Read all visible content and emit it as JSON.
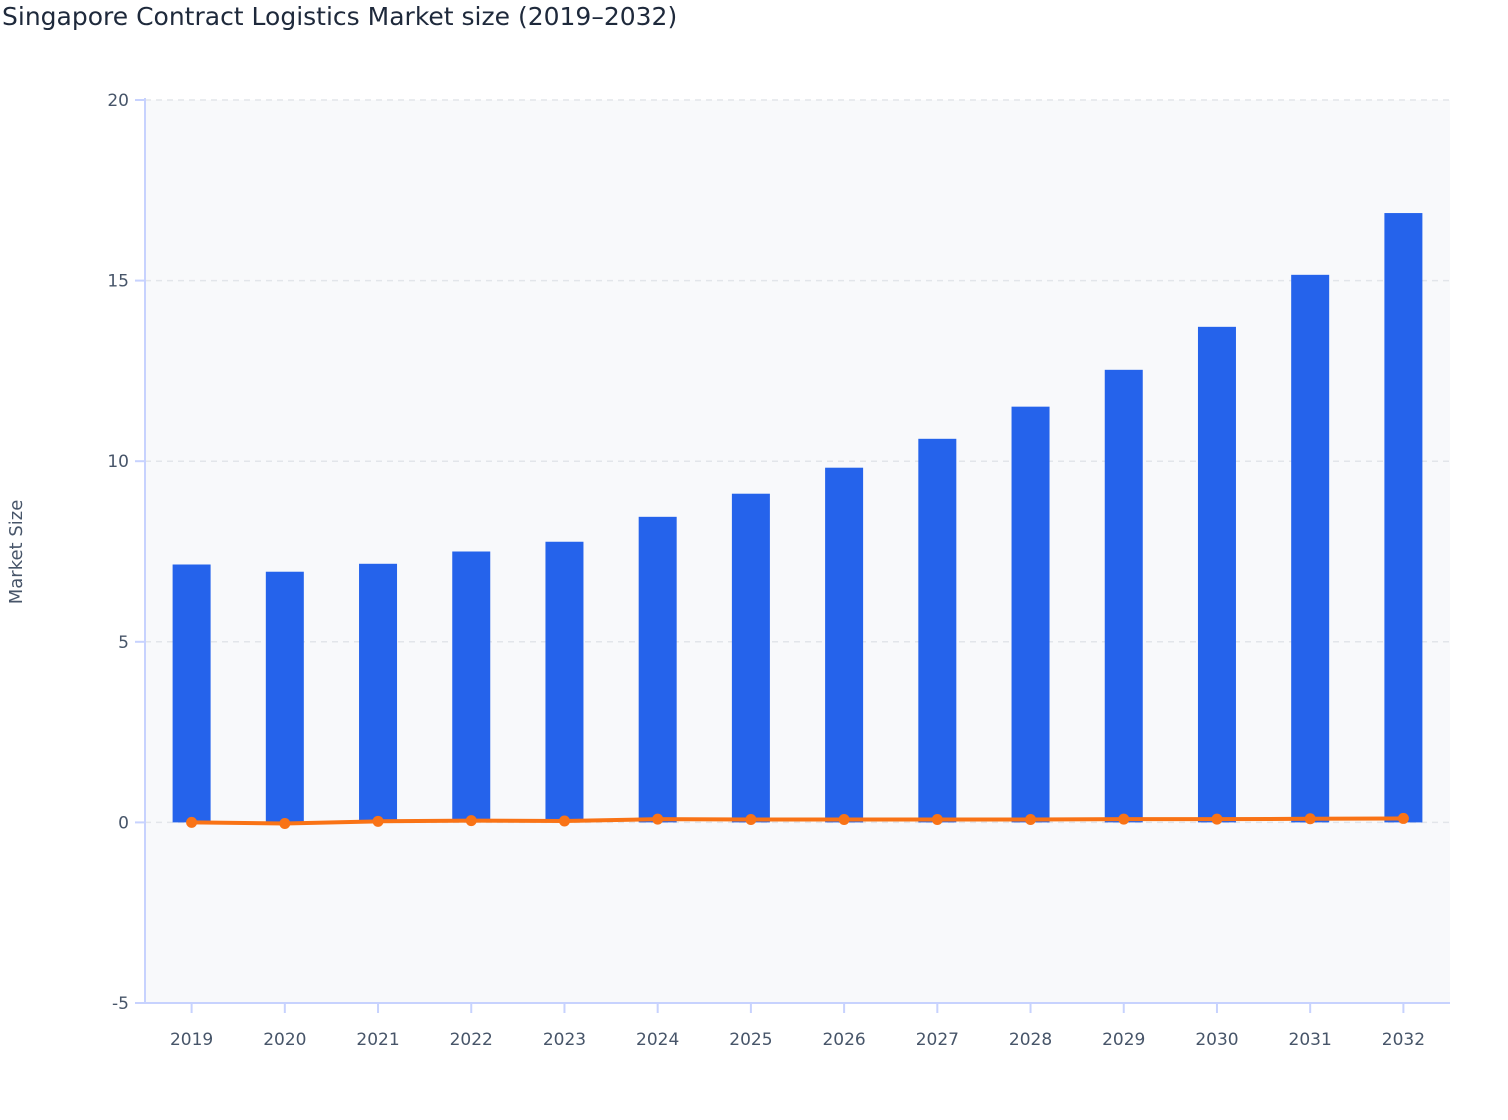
{
  "chart_data": {
    "type": "bar",
    "title": "Singapore Contract Logistics Market size (2019–2032)",
    "xlabel": "",
    "ylabel": "Market Size",
    "ylim": [
      -5,
      20
    ],
    "yticks": [
      -5,
      0,
      5,
      10,
      15,
      20
    ],
    "grid": true,
    "categories": [
      "2019",
      "2020",
      "2021",
      "2022",
      "2023",
      "2024",
      "2025",
      "2026",
      "2027",
      "2028",
      "2029",
      "2030",
      "2031",
      "2032"
    ],
    "series": [
      {
        "type": "bar",
        "color": "#2563eb",
        "values": [
          7.14,
          6.94,
          7.16,
          7.5,
          7.77,
          8.46,
          9.1,
          9.82,
          10.62,
          11.51,
          12.53,
          13.72,
          15.16,
          16.87
        ]
      },
      {
        "type": "line",
        "color": "#f97316",
        "values": [
          0,
          -0.03,
          0.03,
          0.05,
          0.04,
          0.09,
          0.08,
          0.08,
          0.08,
          0.08,
          0.09,
          0.09,
          0.1,
          0.11
        ]
      }
    ]
  }
}
